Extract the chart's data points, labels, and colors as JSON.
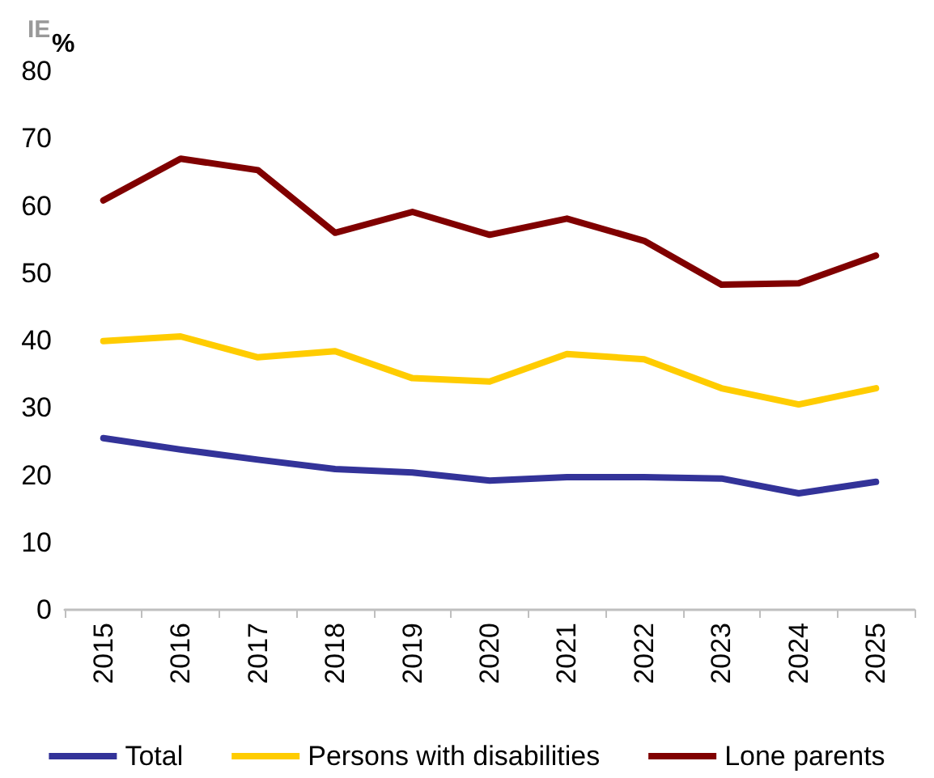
{
  "chart_data": {
    "type": "line",
    "title": "IE",
    "ylabel": "%",
    "categories": [
      "2015",
      "2016",
      "2017",
      "2018",
      "2019",
      "2020",
      "2021",
      "2022",
      "2023",
      "2024",
      "2025"
    ],
    "series": [
      {
        "name": "Total",
        "color": "#333399",
        "values": [
          25.5,
          23.8,
          22.3,
          20.9,
          20.4,
          19.2,
          19.7,
          19.7,
          19.5,
          17.3,
          19.0
        ]
      },
      {
        "name": "Persons with disabilities",
        "color": "#ffcc00",
        "values": [
          39.9,
          40.6,
          37.5,
          38.4,
          34.4,
          33.9,
          38.0,
          37.2,
          32.9,
          30.5,
          32.9
        ]
      },
      {
        "name": "Lone parents",
        "color": "#800000",
        "values": [
          60.8,
          67.0,
          65.3,
          56.0,
          59.1,
          55.7,
          58.1,
          54.8,
          48.3,
          48.5,
          52.6
        ]
      }
    ],
    "ylim": [
      0,
      80
    ],
    "yticks": [
      0,
      10,
      20,
      30,
      40,
      50,
      60,
      70,
      80
    ],
    "grid": false,
    "legend": "bottom",
    "marker": "none",
    "line_style": "solid"
  }
}
